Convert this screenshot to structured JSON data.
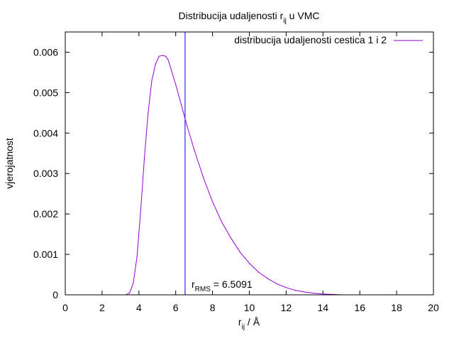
{
  "chart_data": {
    "type": "line",
    "title": {
      "main": "Distribucija udaljenosti r",
      "sub": "ij",
      "tail": " u VMC"
    },
    "xlabel": {
      "main": "r",
      "sub": "ij",
      "tail": " / Å"
    },
    "ylabel": "vjerojatnost",
    "xlim": [
      0,
      20
    ],
    "ylim": [
      0,
      0.0065
    ],
    "xticks": [
      {
        "value": 0,
        "label": "0"
      },
      {
        "value": 2,
        "label": "2"
      },
      {
        "value": 4,
        "label": "4"
      },
      {
        "value": 6,
        "label": "6"
      },
      {
        "value": 8,
        "label": "8"
      },
      {
        "value": 10,
        "label": "10"
      },
      {
        "value": 12,
        "label": "12"
      },
      {
        "value": 14,
        "label": "14"
      },
      {
        "value": 16,
        "label": "16"
      },
      {
        "value": 18,
        "label": "18"
      },
      {
        "value": 20,
        "label": "20"
      }
    ],
    "yticks": [
      {
        "value": 0,
        "label": "0"
      },
      {
        "value": 0.001,
        "label": "0.001"
      },
      {
        "value": 0.002,
        "label": "0.002"
      },
      {
        "value": 0.003,
        "label": "0.003"
      },
      {
        "value": 0.004,
        "label": "0.004"
      },
      {
        "value": 0.005,
        "label": "0.005"
      },
      {
        "value": 0.006,
        "label": "0.006"
      }
    ],
    "grid": false,
    "legend_position": "top-right",
    "series": [
      {
        "name": "distribucija udaljenosti cestica 1 i 2",
        "color": "#9400d3",
        "x": [
          3.3,
          3.5,
          3.7,
          3.9,
          4.1,
          4.3,
          4.5,
          4.7,
          4.9,
          5.1,
          5.3,
          5.45,
          5.6,
          5.8,
          6.0,
          6.3,
          6.6,
          7.0,
          7.5,
          8.0,
          8.5,
          9.0,
          9.5,
          10.0,
          10.5,
          11.0,
          11.5,
          12.0,
          12.5,
          13.0,
          13.5,
          14.0,
          14.5,
          15.0
        ],
        "y": [
          0.0,
          5e-05,
          0.0003,
          0.00095,
          0.0021,
          0.0034,
          0.0045,
          0.0053,
          0.0057,
          0.0059,
          0.00592,
          0.0059,
          0.0058,
          0.0055,
          0.0052,
          0.0047,
          0.0042,
          0.0036,
          0.0029,
          0.0023,
          0.0018,
          0.0014,
          0.00105,
          0.00078,
          0.00056,
          0.0004,
          0.00027,
          0.00018,
          0.00011,
          7e-05,
          4e-05,
          2e-05,
          1e-05,
          0.0
        ]
      }
    ],
    "annotation": {
      "main": "r",
      "sub": "RMS",
      "tail": " = 6.5091"
    },
    "vline": {
      "x": 6.5091,
      "color": "#0000ff"
    }
  }
}
